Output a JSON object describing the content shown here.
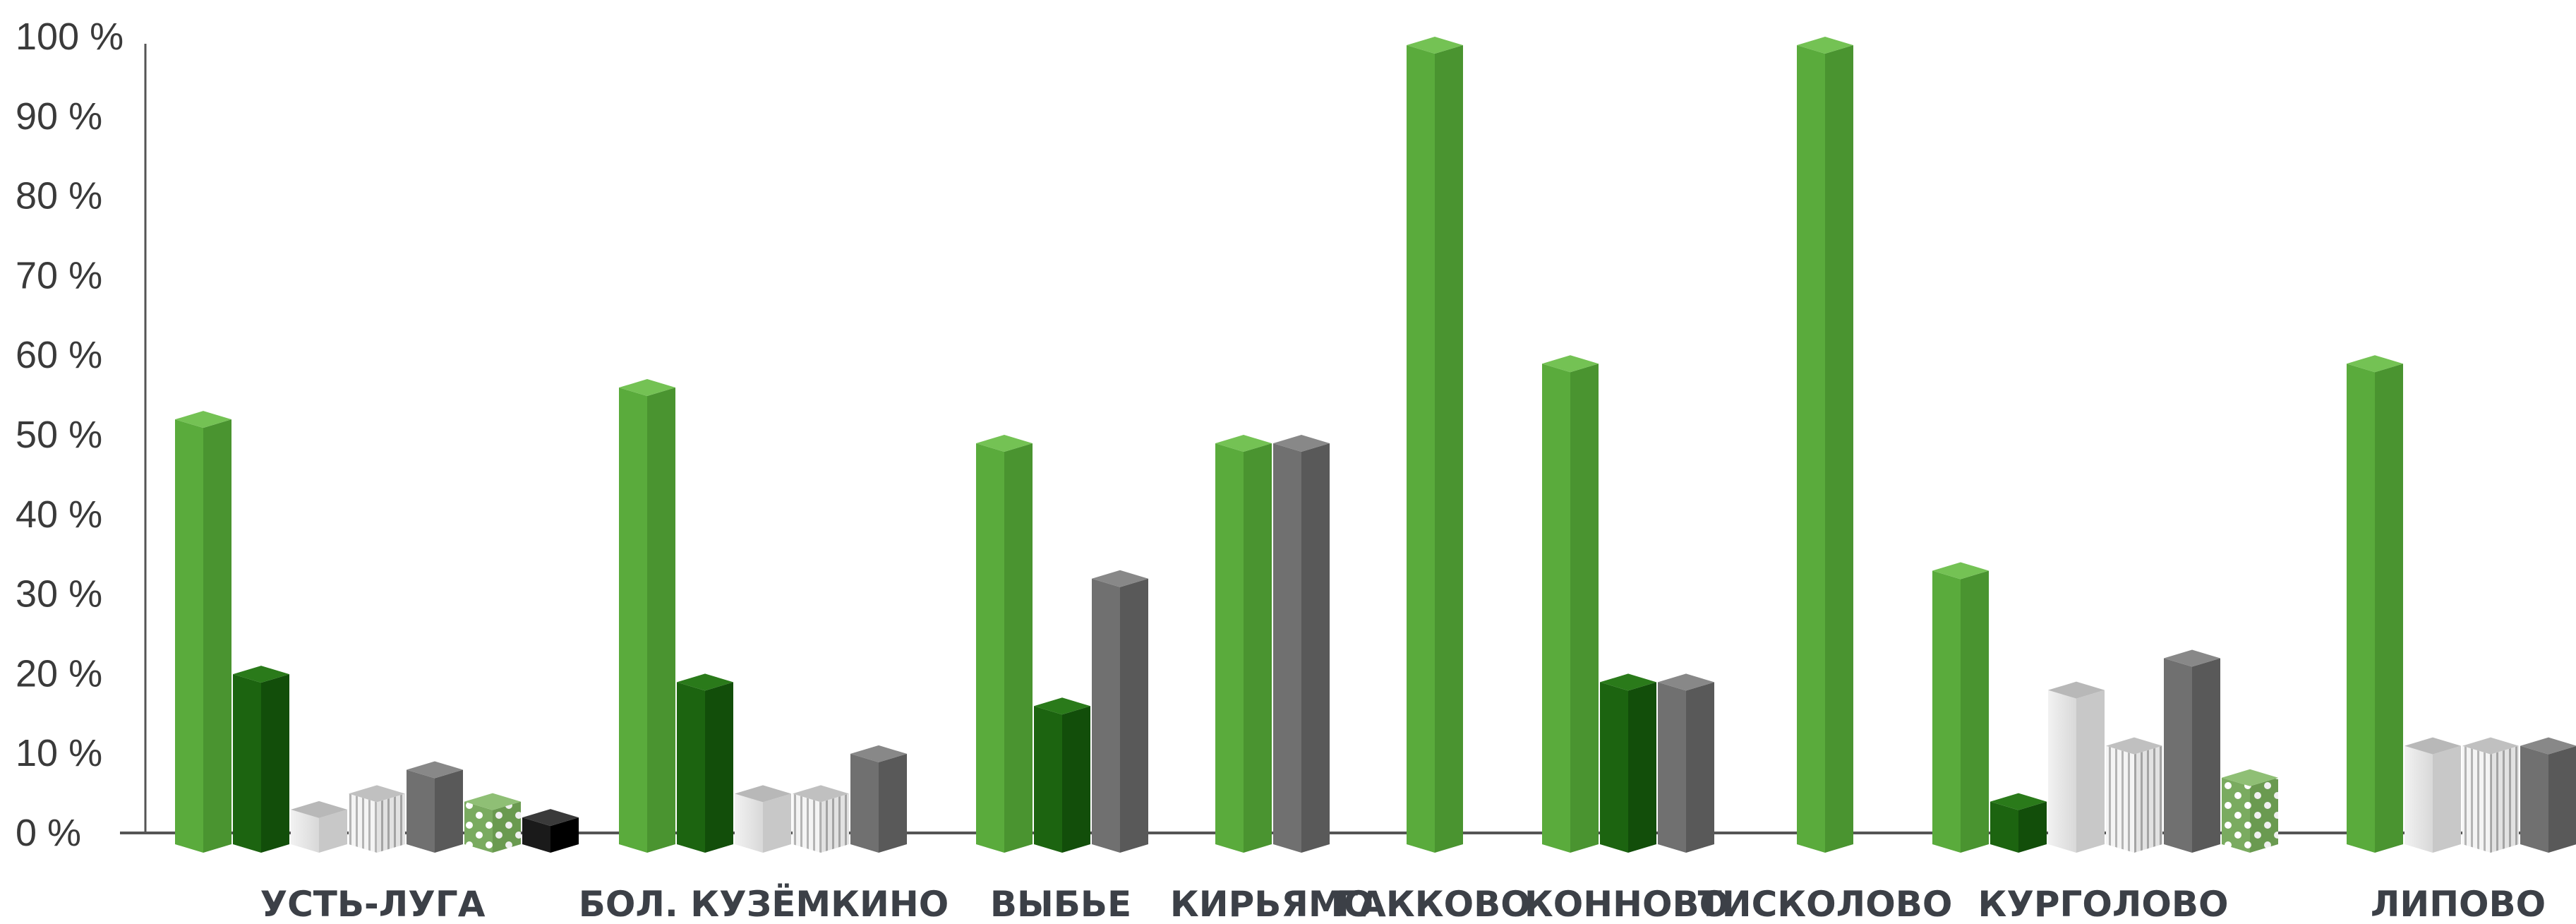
{
  "chart_data": {
    "type": "bar",
    "title": "",
    "xlabel": "",
    "ylabel": "",
    "ylim": [
      0,
      100
    ],
    "yticks": [
      0,
      10,
      20,
      30,
      40,
      50,
      60,
      70,
      80,
      90,
      100
    ],
    "ytick_suffix": " %",
    "grid": false,
    "legend": "none",
    "categories": [
      "УСТЬ-ЛУГА",
      "БОЛ. КУЗЁМКИНО",
      "ВЫБЬЕ",
      "КИРЬЯМО",
      "ГАККОВО",
      "КОННОВО",
      "ТИСКОЛОВО",
      "КУРГОЛОВО",
      "ЛИПОВО"
    ],
    "groups": [
      {
        "category": "УСТЬ-ЛУГА",
        "bars": [
          {
            "value": 53,
            "style": "light-green"
          },
          {
            "value": 21,
            "style": "dark-green"
          },
          {
            "value": 4,
            "style": "white"
          },
          {
            "value": 6,
            "style": "striped"
          },
          {
            "value": 9,
            "style": "gray"
          },
          {
            "value": 5,
            "style": "dotted"
          },
          {
            "value": 3,
            "style": "black"
          }
        ]
      },
      {
        "category": "БОЛ. КУЗЁМКИНО",
        "bars": [
          {
            "value": 57,
            "style": "light-green"
          },
          {
            "value": 20,
            "style": "dark-green"
          },
          {
            "value": 6,
            "style": "white"
          },
          {
            "value": 6,
            "style": "striped"
          },
          {
            "value": 11,
            "style": "gray"
          }
        ]
      },
      {
        "category": "ВЫБЬЕ",
        "bars": [
          {
            "value": 50,
            "style": "light-green"
          },
          {
            "value": 17,
            "style": "dark-green"
          },
          {
            "value": 33,
            "style": "gray"
          }
        ]
      },
      {
        "category": "КИРЬЯМО",
        "bars": [
          {
            "value": 50,
            "style": "light-green"
          },
          {
            "value": 50,
            "style": "gray"
          }
        ]
      },
      {
        "category": "ГАККОВО",
        "bars": [
          {
            "value": 100,
            "style": "light-green"
          }
        ]
      },
      {
        "category": "КОННОВО",
        "bars": [
          {
            "value": 60,
            "style": "light-green"
          },
          {
            "value": 20,
            "style": "dark-green"
          },
          {
            "value": 20,
            "style": "gray"
          }
        ]
      },
      {
        "category": "ТИСКОЛОВО",
        "bars": [
          {
            "value": 100,
            "style": "light-green"
          }
        ]
      },
      {
        "category": "КУРГОЛОВО",
        "bars": [
          {
            "value": 34,
            "style": "light-green"
          },
          {
            "value": 5,
            "style": "dark-green"
          },
          {
            "value": 19,
            "style": "white"
          },
          {
            "value": 12,
            "style": "striped"
          },
          {
            "value": 23,
            "style": "gray"
          },
          {
            "value": 8,
            "style": "dotted"
          }
        ]
      },
      {
        "category": "ЛИПОВО",
        "bars": [
          {
            "value": 60,
            "style": "light-green"
          },
          {
            "value": 12,
            "style": "white"
          },
          {
            "value": 12,
            "style": "striped"
          },
          {
            "value": 12,
            "style": "gray"
          }
        ]
      }
    ],
    "colors": {
      "light-green": "#5aab3c",
      "dark-green": "#1c6410",
      "white": "#e4e4e4",
      "striped": "#d9d9d9",
      "gray": "#707070",
      "dotted": "#7aab60",
      "black": "#1a1a1a",
      "axis": "#555555"
    }
  }
}
